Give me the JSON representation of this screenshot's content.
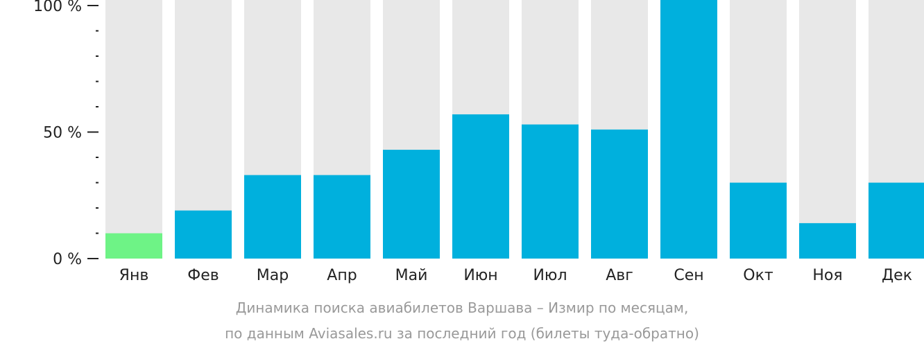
{
  "chart_data": {
    "type": "bar",
    "categories": [
      "Янв",
      "Фев",
      "Мар",
      "Апр",
      "Май",
      "Июн",
      "Июл",
      "Авг",
      "Сен",
      "Окт",
      "Ноя",
      "Дек"
    ],
    "values": [
      10,
      19,
      33,
      33,
      43,
      57,
      53,
      51,
      100,
      30,
      14,
      30
    ],
    "highlight_index": 0,
    "ylim": [
      0,
      100
    ],
    "yticks": [
      {
        "value": 0,
        "label": "0 %"
      },
      {
        "value": 50,
        "label": "50 %"
      },
      {
        "value": 100,
        "label": "100 %"
      }
    ],
    "minor_tick_step": 10,
    "grid": false,
    "colors": {
      "bar": "#00b0dd",
      "bar_highlight": "#6ef386",
      "bar_background": "#e8e8e8",
      "axis": "#222222",
      "caption": "#999999"
    },
    "caption": [
      "Динамика поиска авиабилетов Варшава – Измир по месяцам,",
      "по данным Aviasales.ru за последний год (билеты туда-обратно)"
    ]
  }
}
